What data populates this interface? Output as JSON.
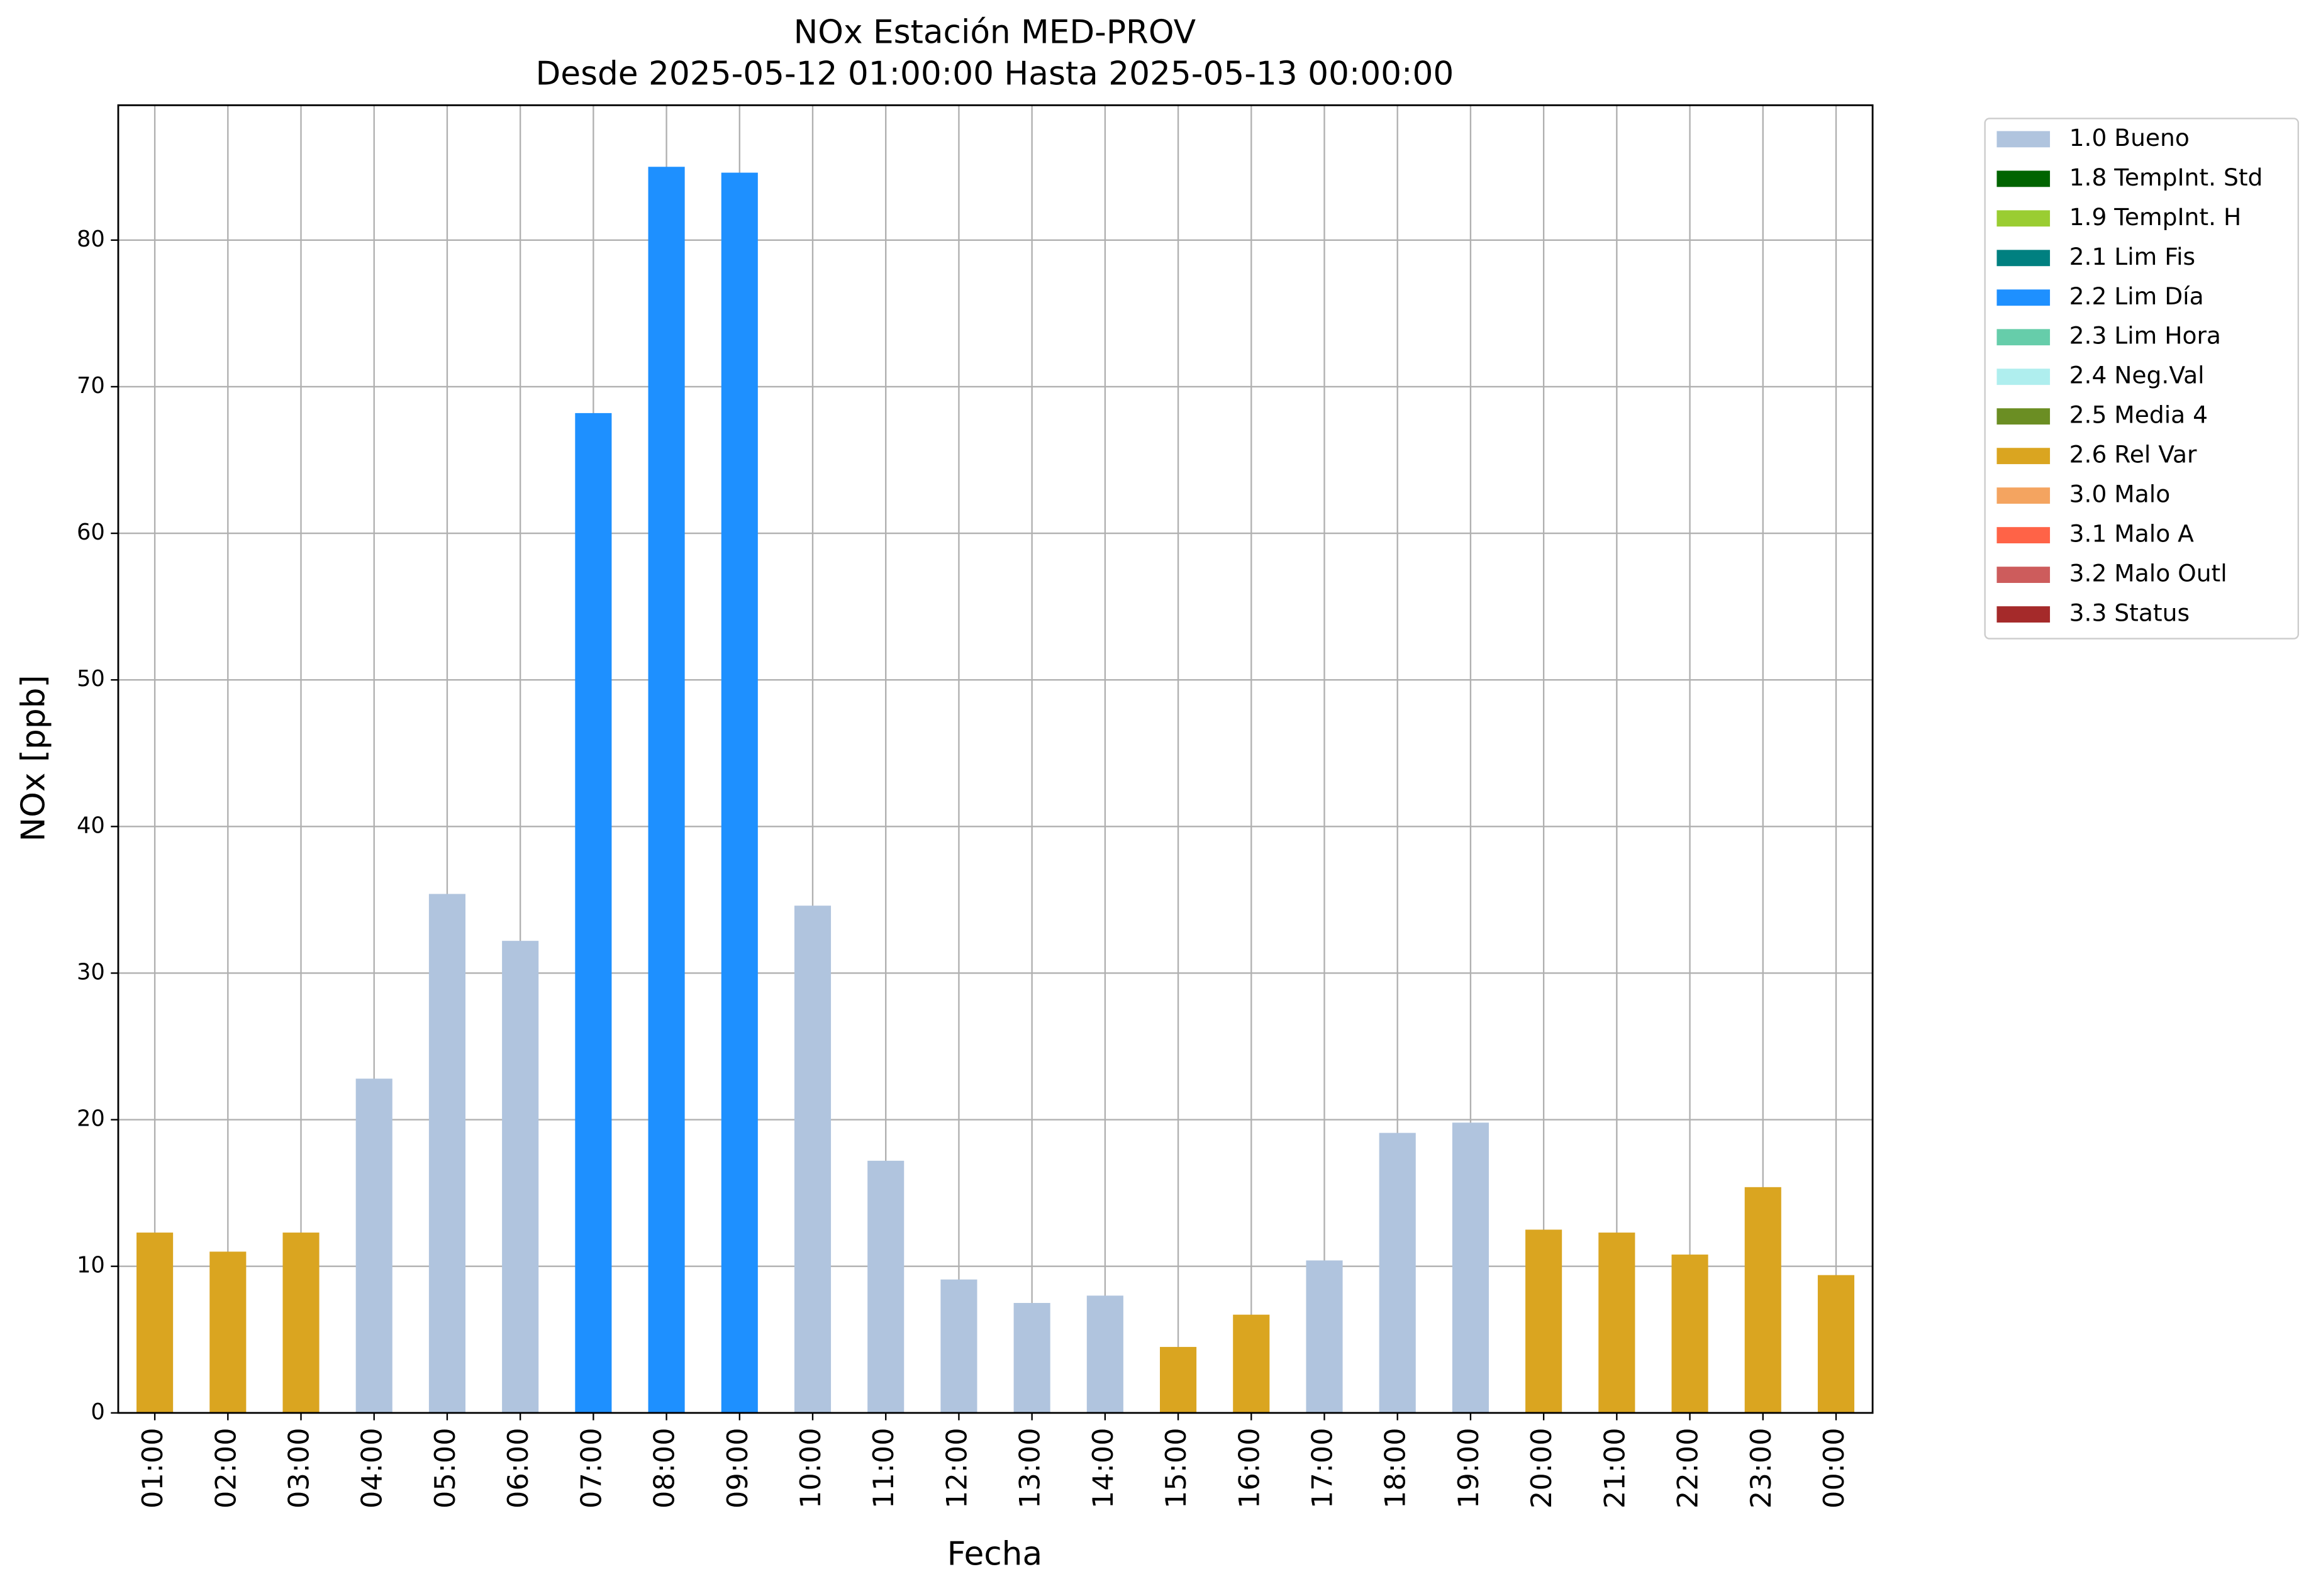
{
  "chart_data": {
    "type": "bar",
    "title": "NOx Estación MED-PROV",
    "subtitle": "Desde 2025-05-12 01:00:00 Hasta 2025-05-13 00:00:00",
    "xlabel": "Fecha",
    "ylabel": "NOx [ppb]",
    "categories": [
      "01:00",
      "02:00",
      "03:00",
      "04:00",
      "05:00",
      "06:00",
      "07:00",
      "08:00",
      "09:00",
      "10:00",
      "11:00",
      "12:00",
      "13:00",
      "14:00",
      "15:00",
      "16:00",
      "17:00",
      "18:00",
      "19:00",
      "20:00",
      "21:00",
      "22:00",
      "23:00",
      "00:00"
    ],
    "series": [
      {
        "name": "1.0 Bueno",
        "color": "#b0c4de",
        "values": [
          null,
          null,
          null,
          22.8,
          35.4,
          32.2,
          null,
          null,
          null,
          34.6,
          17.2,
          9.1,
          7.5,
          8.0,
          null,
          null,
          10.4,
          19.1,
          19.8,
          null,
          null,
          null,
          null,
          null
        ]
      },
      {
        "name": "1.8 TempInt. Std",
        "color": "#006400",
        "values": [
          null,
          null,
          null,
          null,
          null,
          null,
          null,
          null,
          null,
          null,
          null,
          null,
          null,
          null,
          null,
          null,
          null,
          null,
          null,
          null,
          null,
          null,
          null,
          null
        ]
      },
      {
        "name": "1.9 TempInt. H",
        "color": "#9acd32",
        "values": [
          null,
          null,
          null,
          null,
          null,
          null,
          null,
          null,
          null,
          null,
          null,
          null,
          null,
          null,
          null,
          null,
          null,
          null,
          null,
          null,
          null,
          null,
          null,
          null
        ]
      },
      {
        "name": "2.1 Lim Fis",
        "color": "#008080",
        "values": [
          null,
          null,
          null,
          null,
          null,
          null,
          null,
          null,
          null,
          null,
          null,
          null,
          null,
          null,
          null,
          null,
          null,
          null,
          null,
          null,
          null,
          null,
          null,
          null
        ]
      },
      {
        "name": "2.2 Lim Día",
        "color": "#1e90ff",
        "values": [
          null,
          null,
          null,
          null,
          null,
          null,
          68.2,
          85.0,
          84.6,
          null,
          null,
          null,
          null,
          null,
          null,
          null,
          null,
          null,
          null,
          null,
          null,
          null,
          null,
          null
        ]
      },
      {
        "name": "2.3 Lim Hora",
        "color": "#66cdaa",
        "values": [
          null,
          null,
          null,
          null,
          null,
          null,
          null,
          null,
          null,
          null,
          null,
          null,
          null,
          null,
          null,
          null,
          null,
          null,
          null,
          null,
          null,
          null,
          null,
          null
        ]
      },
      {
        "name": "2.4 Neg.Val",
        "color": "#afeeee",
        "values": [
          null,
          null,
          null,
          null,
          null,
          null,
          null,
          null,
          null,
          null,
          null,
          null,
          null,
          null,
          null,
          null,
          null,
          null,
          null,
          null,
          null,
          null,
          null,
          null
        ]
      },
      {
        "name": "2.5 Media 4",
        "color": "#6b8e23",
        "values": [
          null,
          null,
          null,
          null,
          null,
          null,
          null,
          null,
          null,
          null,
          null,
          null,
          null,
          null,
          null,
          null,
          null,
          null,
          null,
          null,
          null,
          null,
          null,
          null
        ]
      },
      {
        "name": "2.6 Rel Var",
        "color": "#daa520",
        "values": [
          12.3,
          11.0,
          12.3,
          null,
          null,
          null,
          null,
          null,
          null,
          null,
          null,
          null,
          null,
          null,
          4.5,
          6.7,
          null,
          null,
          null,
          12.5,
          12.3,
          10.8,
          15.4,
          9.4
        ]
      },
      {
        "name": "3.0 Malo",
        "color": "#f4a460",
        "values": [
          null,
          null,
          null,
          null,
          null,
          null,
          null,
          null,
          null,
          null,
          null,
          null,
          null,
          null,
          null,
          null,
          null,
          null,
          null,
          null,
          null,
          null,
          null,
          null
        ]
      },
      {
        "name": "3.1 Malo A",
        "color": "#ff6347",
        "values": [
          null,
          null,
          null,
          null,
          null,
          null,
          null,
          null,
          null,
          null,
          null,
          null,
          null,
          null,
          null,
          null,
          null,
          null,
          null,
          null,
          null,
          null,
          null,
          null
        ]
      },
      {
        "name": "3.2 Malo Outl",
        "color": "#cd5c5c",
        "values": [
          null,
          null,
          null,
          null,
          null,
          null,
          null,
          null,
          null,
          null,
          null,
          null,
          null,
          null,
          null,
          null,
          null,
          null,
          null,
          null,
          null,
          null,
          null,
          null
        ]
      },
      {
        "name": "3.3 Status",
        "color": "#a52a2a",
        "values": [
          null,
          null,
          null,
          null,
          null,
          null,
          null,
          null,
          null,
          null,
          null,
          null,
          null,
          null,
          null,
          null,
          null,
          null,
          null,
          null,
          null,
          null,
          null,
          null
        ]
      }
    ],
    "ylim": [
      0,
      89.2
    ],
    "yticks": [
      0,
      10,
      20,
      30,
      40,
      50,
      60,
      70,
      80
    ],
    "grid": true
  }
}
